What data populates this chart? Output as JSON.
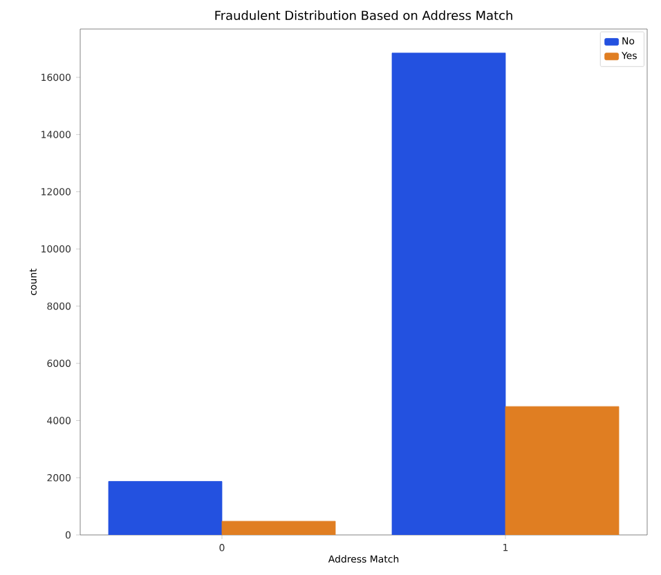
{
  "chart_data": {
    "type": "bar",
    "title": "Fraudulent Distribution Based on Address Match",
    "xlabel": "Address Match",
    "ylabel": "count",
    "categories": [
      "0",
      "1"
    ],
    "series": [
      {
        "name": "No",
        "color": "#2351e0",
        "values": [
          1870,
          16850
        ]
      },
      {
        "name": "Yes",
        "color": "#e07e22",
        "values": [
          480,
          4490
        ]
      }
    ],
    "ylim": [
      0,
      17690
    ],
    "yticks": [
      0,
      2000,
      4000,
      6000,
      8000,
      10000,
      12000,
      14000,
      16000
    ],
    "grid": false,
    "legend": "top right"
  }
}
